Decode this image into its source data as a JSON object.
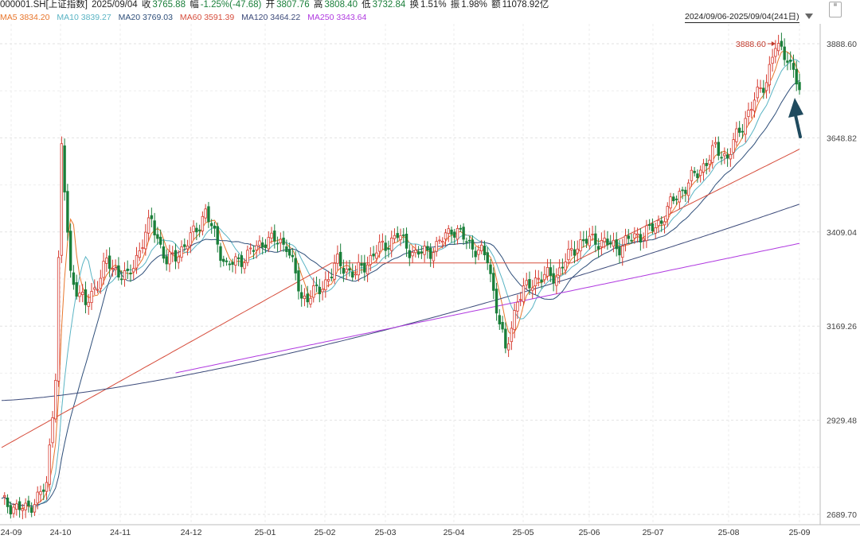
{
  "header": {
    "symbol": "000001.SH[上证指数]",
    "date": "2025/09/04",
    "close_label": "收",
    "close": "3765.88",
    "change_label": "幅",
    "change": "-1.25%(-47.68)",
    "open_label": "开",
    "open": "3807.76",
    "high_label": "高",
    "high": "3808.40",
    "low_label": "低",
    "low": "3732.84",
    "turnover_label": "换",
    "turnover": "1.51%",
    "amplitude_label": "振",
    "amplitude": "1.98%",
    "amount_label": "额",
    "amount": "11078.92亿"
  },
  "ma_legend": [
    {
      "label": "MA5 3834.20",
      "color": "#e8762c"
    },
    {
      "label": "MA10 3839.27",
      "color": "#5ab4c4"
    },
    {
      "label": "MA20 3769.03",
      "color": "#2f4f7a"
    },
    {
      "label": "MA60 3591.39",
      "color": "#d64d3c"
    },
    {
      "label": "MA120 3464.22",
      "color": "#3c4a7a"
    },
    {
      "label": "MA250 3343.64",
      "color": "#b03ae0"
    }
  ],
  "range_label": "2024/09/06-2025/09/04(241日)",
  "chart_data": {
    "type": "candlestick",
    "yticks": [
      "3888.60",
      "3648.82",
      "3409.04",
      "3169.26",
      "2929.48",
      "2689.70"
    ],
    "ylim": [
      2689.7,
      3888.6
    ],
    "xticks": [
      "24-09",
      "24-10",
      "24-11",
      "24-12",
      "25-01",
      "25-02",
      "25-03",
      "25-04",
      "25-05",
      "25-06",
      "25-07",
      "25-08",
      "25-09"
    ],
    "max_label": "3888.60",
    "colors": {
      "up": "#d63a2f",
      "down": "#1a7f3a",
      "arrow": "#1f4a5e"
    },
    "monthly_close": [
      2700,
      3340,
      3290,
      3330,
      3250,
      3290,
      3350,
      3280,
      3340,
      3390,
      3580,
      3840,
      3766
    ]
  }
}
